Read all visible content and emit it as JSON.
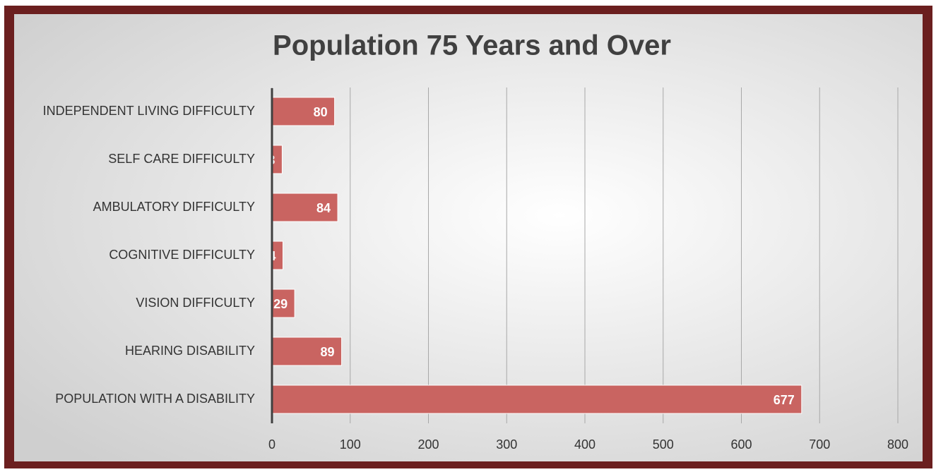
{
  "chart_data": {
    "type": "bar",
    "orientation": "horizontal",
    "title": "Population 75 Years and Over",
    "categories": [
      "INDEPENDENT LIVING DIFFICULTY",
      "SELF CARE DIFFICULTY",
      "AMBULATORY DIFFICULTY",
      "COGNITIVE DIFFICULTY",
      "VISION DIFFICULTY",
      "HEARING DISABILITY",
      "POPULATION WITH A DISABILITY"
    ],
    "values": [
      80,
      13,
      84,
      14,
      29,
      89,
      677
    ],
    "color": "#c96461",
    "xlim": [
      0,
      800
    ],
    "xticks": [
      0,
      100,
      200,
      300,
      400,
      500,
      600,
      700,
      800
    ],
    "grid": true
  }
}
